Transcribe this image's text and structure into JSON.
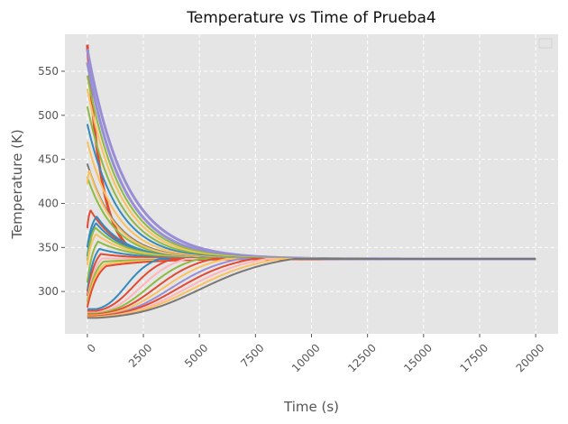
{
  "chart_data": {
    "type": "line",
    "title": "Temperature vs Time of Prueba4",
    "xlabel": "Time (s)",
    "ylabel": "Temperature (K)",
    "xlim": [
      -1000,
      21000
    ],
    "ylim": [
      252,
      592
    ],
    "x_ticks": [
      0,
      2500,
      5000,
      7500,
      10000,
      12500,
      15000,
      17500,
      20000
    ],
    "y_ticks": [
      300,
      350,
      400,
      450,
      500,
      550
    ],
    "x_tick_labels": [
      "0",
      "2500",
      "5000",
      "7500",
      "10000",
      "12500",
      "15000",
      "17500",
      "20000"
    ],
    "y_tick_labels": [
      "300",
      "350",
      "400",
      "450",
      "500",
      "550"
    ],
    "grid": true,
    "legend": "top-right (empty)",
    "background": "#e5e5e5",
    "gridline_color": "#ffffff",
    "color_cycle": [
      "#E24A33",
      "#348ABD",
      "#988ED5",
      "#777777",
      "#FBC15E",
      "#8EBA42",
      "#FFB5B8"
    ],
    "equilibrium": 337,
    "t_end": 20000,
    "series": [
      {
        "initial": 580,
        "peak": 580,
        "tau": 650,
        "rise": 0,
        "color": "#E24A33"
      },
      {
        "initial": 575,
        "peak": 575,
        "tau": 1700,
        "rise": 0,
        "color": "#988ED5"
      },
      {
        "initial": 560,
        "peak": 560,
        "tau": 1600,
        "rise": 0,
        "color": "#988ED5"
      },
      {
        "initial": 545,
        "peak": 545,
        "tau": 1550,
        "rise": 0,
        "color": "#8EBA42"
      },
      {
        "initial": 530,
        "peak": 530,
        "tau": 1500,
        "rise": 0,
        "color": "#FBC15E"
      },
      {
        "initial": 510,
        "peak": 510,
        "tau": 1450,
        "rise": 0,
        "color": "#8EBA42"
      },
      {
        "initial": 490,
        "peak": 490,
        "tau": 1400,
        "rise": 0,
        "color": "#348ABD"
      },
      {
        "initial": 470,
        "peak": 470,
        "tau": 1350,
        "rise": 0,
        "color": "#FBC15E"
      },
      {
        "initial": 445,
        "peak": 445,
        "tau": 1300,
        "rise": 0,
        "color": "#777777"
      },
      {
        "initial": 430,
        "peak": 430,
        "tau": 1250,
        "rise": 0,
        "color": "#8EBA42"
      },
      {
        "initial": 422,
        "peak": 440,
        "tau": 1250,
        "rise": 150,
        "color": "#FBC15E"
      },
      {
        "initial": 372,
        "peak": 396,
        "tau": 1300,
        "rise": 250,
        "color": "#E24A33"
      },
      {
        "initial": 350,
        "peak": 392,
        "tau": 1300,
        "rise": 700,
        "color": "#348ABD"
      },
      {
        "initial": 340,
        "peak": 385,
        "tau": 1350,
        "rise": 650,
        "color": "#348ABD"
      },
      {
        "initial": 335,
        "peak": 380,
        "tau": 1400,
        "rise": 600,
        "color": "#8EBA42"
      },
      {
        "initial": 330,
        "peak": 372,
        "tau": 1450,
        "rise": 650,
        "color": "#FBC15E"
      },
      {
        "initial": 310,
        "peak": 366,
        "tau": 1500,
        "rise": 800,
        "color": "#8EBA42"
      },
      {
        "initial": 300,
        "peak": 358,
        "tau": 1550,
        "rise": 900,
        "color": "#348ABD"
      },
      {
        "initial": 295,
        "peak": 352,
        "tau": 1600,
        "rise": 1000,
        "color": "#E24A33"
      },
      {
        "initial": 290,
        "peak": 347,
        "tau": 1700,
        "rise": 1100,
        "color": "#FFB5B8"
      },
      {
        "initial": 288,
        "peak": 343,
        "tau": 1800,
        "rise": 1200,
        "color": "#8EBA42"
      },
      {
        "initial": 285,
        "peak": 340,
        "tau": 1900,
        "rise": 1300,
        "color": "#FBC15E"
      },
      {
        "initial": 282,
        "peak": 338,
        "tau": 2000,
        "rise": 1400,
        "color": "#E24A33"
      },
      {
        "initial": 280,
        "peak": 337,
        "tau": 0,
        "rise": 1500,
        "color": "#348ABD"
      },
      {
        "initial": 278,
        "peak": 337,
        "tau": 0,
        "rise": 1800,
        "color": "#E24A33"
      },
      {
        "initial": 276,
        "peak": 337,
        "tau": 0,
        "rise": 2100,
        "color": "#FFB5B8"
      },
      {
        "initial": 275,
        "peak": 337,
        "tau": 0,
        "rise": 2400,
        "color": "#8EBA42"
      },
      {
        "initial": 274,
        "peak": 337,
        "tau": 0,
        "rise": 2700,
        "color": "#E24A33"
      },
      {
        "initial": 273,
        "peak": 337,
        "tau": 0,
        "rise": 3000,
        "color": "#FBC15E"
      },
      {
        "initial": 272,
        "peak": 337,
        "tau": 0,
        "rise": 3300,
        "color": "#988ED5"
      },
      {
        "initial": 272,
        "peak": 337,
        "tau": 0,
        "rise": 3600,
        "color": "#E24A33"
      },
      {
        "initial": 271,
        "peak": 337,
        "tau": 0,
        "rise": 3900,
        "color": "#FFB5B8"
      },
      {
        "initial": 271,
        "peak": 337,
        "tau": 0,
        "rise": 4200,
        "color": "#FBC15E"
      },
      {
        "initial": 270,
        "peak": 337,
        "tau": 0,
        "rise": 4500,
        "color": "#777777"
      }
    ]
  }
}
